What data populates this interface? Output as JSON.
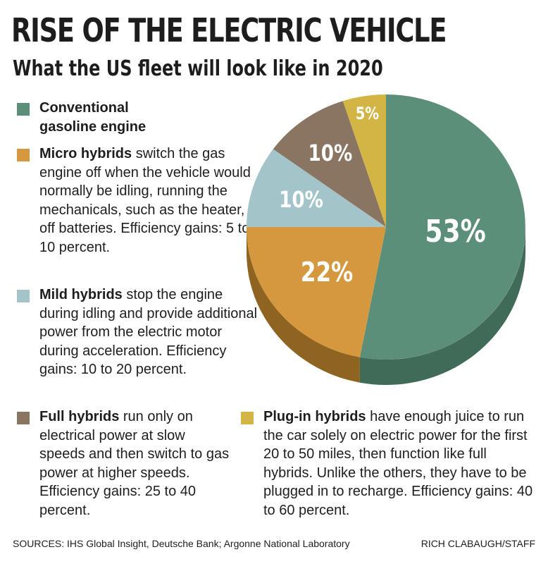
{
  "title": "RISE OF THE ELECTRIC VEHICLE",
  "subtitle": "What the US fleet will look like in 2020",
  "legend": [
    {
      "name": "Conventional",
      "name2": "gasoline engine",
      "color": "#5c8f79"
    },
    {
      "name": "Micro hybrids",
      "rest": " switch the gas engine off when the vehicle would normally be idling, running the mechanicals, such as the heater, off batteries. Efficiency gains: 5 to 10 percent.",
      "color": "#d6983f"
    },
    {
      "name": "Mild hybrids",
      "rest": " stop the engine during idling and provide additional power from the electric motor during acceleration. Efficiency gains: 10 to 20 percent.",
      "color": "#a3c5ca"
    },
    {
      "name": "Full hybrids",
      "rest": " run only on electrical power at slow speeds and then switch to gas power at higher speeds. Efficiency gains: 25 to 40 percent.",
      "color": "#8a7563"
    },
    {
      "name": "Plug-in hybrids",
      "rest": " have enough juice to run the car solely on electric power for the first 20 to 50 miles, then function like full hybrids. Unlike the others, they have to be plugged in to recharge. Efficiency gains: 40 to 60 percent.",
      "color": "#d2b544"
    }
  ],
  "chart_data": {
    "type": "pie",
    "title": "What the US fleet will look like in 2020",
    "categories": [
      "Conventional gasoline engine",
      "Micro hybrids",
      "Mild hybrids",
      "Full hybrids",
      "Plug-in hybrids"
    ],
    "values": [
      53,
      22,
      10,
      10,
      5
    ],
    "labels": [
      "53%",
      "22%",
      "10%",
      "10%",
      "5%"
    ],
    "colors": [
      "#5c8f79",
      "#d6983f",
      "#a3c5ca",
      "#8a7563",
      "#d2b544"
    ],
    "side_colors": [
      "#3f6b58",
      "#8f6420",
      "#5c7d80",
      "#5a4a3d",
      "#8f7a2a"
    ]
  },
  "sources": "SOURCES: IHS Global Insight, Deutsche Bank; Argonne National Laboratory",
  "credit": "RICH CLABAUGH/STAFF"
}
